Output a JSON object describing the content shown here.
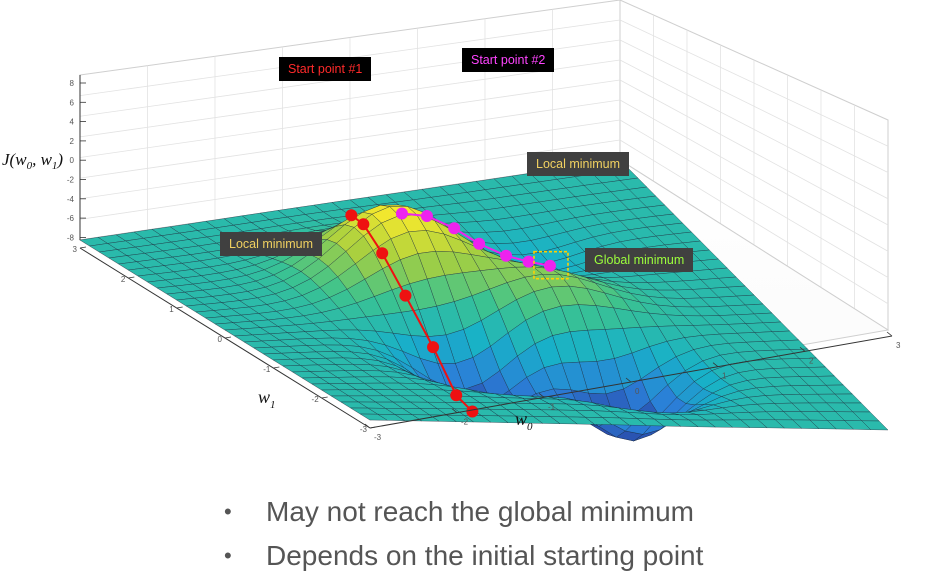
{
  "figure": {
    "z_axis_label": "J(w0, w1)",
    "z_axis_label_parts": {
      "fn": "J(",
      "a": "w",
      "a_sub": "0",
      "sep": ", ",
      "b": "w",
      "b_sub": "1",
      "close": ")"
    },
    "x_axis_label": {
      "base": "w",
      "sub": "0"
    },
    "y_axis_label": {
      "base": "w",
      "sub": "1"
    },
    "z_ticks": [
      "8",
      "6",
      "4",
      "2",
      "0",
      "-2",
      "-4",
      "-6",
      "-8"
    ],
    "x_ticks": [
      "-3",
      "-2",
      "-1",
      "0",
      "1",
      "2",
      "3"
    ],
    "y_ticks": [
      "3",
      "2",
      "1",
      "0",
      "-1",
      "-2",
      "-3"
    ],
    "z_range": [
      -8,
      8
    ],
    "x_range": [
      -3,
      3
    ],
    "y_range": [
      -3,
      3
    ],
    "grid": true,
    "surface_colormap": [
      "#2a3a9b",
      "#2b7fd8",
      "#18b1c8",
      "#3cc38f",
      "#a6cf40",
      "#f6e92d"
    ]
  },
  "annotations": {
    "start1": {
      "text": "Start point #1",
      "bg": "#000000",
      "color": "#ff2a2a"
    },
    "start2": {
      "text": "Start point #2",
      "bg": "#000000",
      "color": "#ff44ff"
    },
    "local_min_left": {
      "text": "Local minimum",
      "bg": "#404040",
      "color": "#f0d060"
    },
    "local_min_right": {
      "text": "Local minimum",
      "bg": "#404040",
      "color": "#f0d060"
    },
    "global_min": {
      "text": "Global minimum",
      "bg": "#404040",
      "color": "#9cff3c"
    }
  },
  "paths": {
    "path1_color": "#ee1111",
    "path2_color": "#ee22ee",
    "highlight_color": "#ffd000"
  },
  "bullets": [
    "May not reach the global minimum",
    "Depends on the initial starting point"
  ]
}
